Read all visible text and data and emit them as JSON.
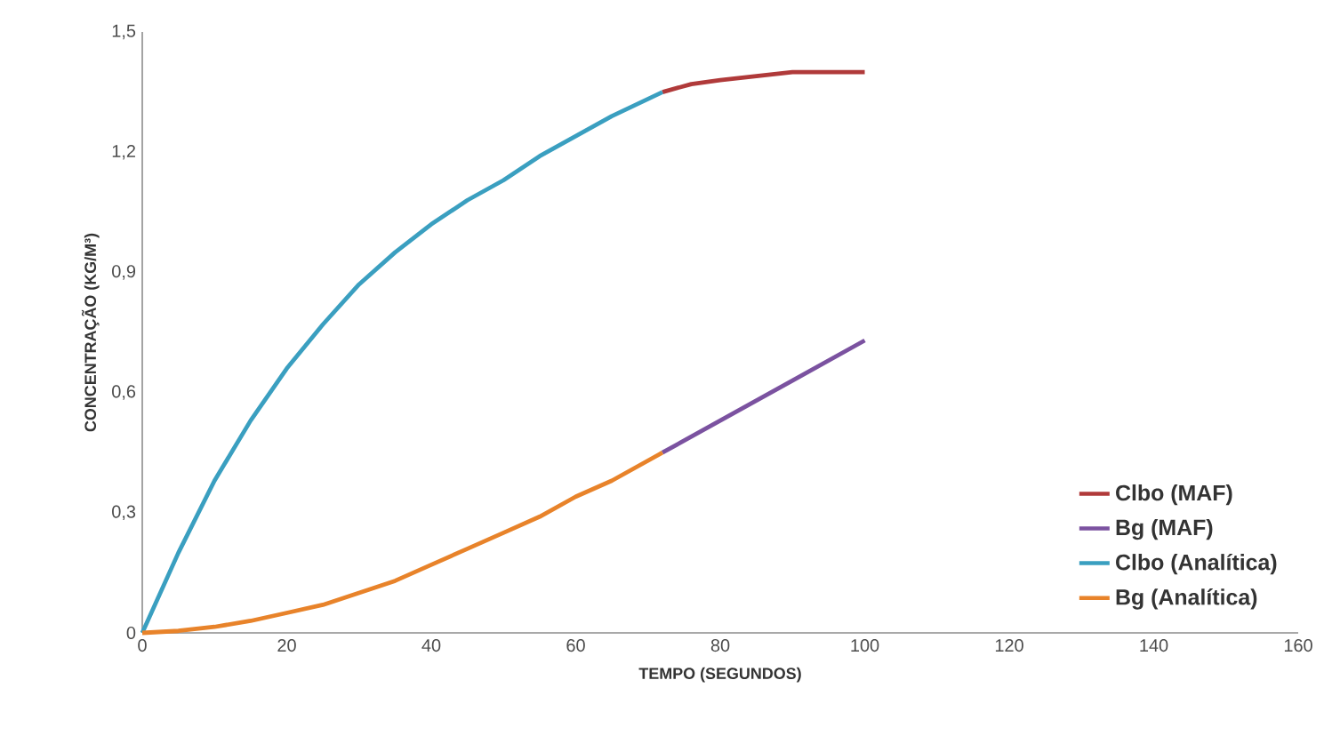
{
  "chart_data": {
    "type": "line",
    "xlabel": "TEMPO (SEGUNDOS)",
    "ylabel": "CONCENTRAÇÃO (KG/M³)",
    "xlim": [
      0,
      160
    ],
    "ylim": [
      0,
      1.5
    ],
    "xticks": [
      0,
      20,
      40,
      60,
      80,
      100,
      120,
      140,
      160
    ],
    "yticks": [
      0,
      {
        "value": 0.3,
        "label": "0,3"
      },
      {
        "value": 0.6,
        "label": "0,6"
      },
      {
        "value": 0.9,
        "label": "0,9"
      },
      {
        "value": 1.2,
        "label": "1,2"
      },
      {
        "value": 1.5,
        "label": "1,5"
      }
    ],
    "grid": false,
    "legend": "bottom right",
    "marker": "none",
    "line_style": "solid",
    "series": [
      {
        "name": "Clbo (MAF)",
        "color": "#b03a3a",
        "x": [
          72,
          76,
          80,
          85,
          90,
          95,
          100
        ],
        "values": [
          1.35,
          1.37,
          1.38,
          1.39,
          1.4,
          1.4,
          1.4
        ]
      },
      {
        "name": "Bg (MAF)",
        "color": "#7b52a0",
        "x": [
          72,
          80,
          90,
          100
        ],
        "values": [
          0.45,
          0.53,
          0.63,
          0.73
        ]
      },
      {
        "name": "Clbo (Analítica)",
        "color": "#3a9fc0",
        "x": [
          0,
          5,
          10,
          15,
          20,
          25,
          30,
          35,
          40,
          45,
          50,
          55,
          60,
          65,
          72
        ],
        "values": [
          0,
          0.2,
          0.38,
          0.53,
          0.66,
          0.77,
          0.87,
          0.95,
          1.02,
          1.08,
          1.13,
          1.19,
          1.24,
          1.29,
          1.35
        ]
      },
      {
        "name": "Bg (Analítica)",
        "color": "#e8832a",
        "x": [
          0,
          5,
          10,
          15,
          20,
          25,
          30,
          35,
          40,
          45,
          50,
          55,
          60,
          65,
          72
        ],
        "values": [
          0,
          0.005,
          0.015,
          0.03,
          0.05,
          0.07,
          0.1,
          0.13,
          0.17,
          0.21,
          0.25,
          0.29,
          0.34,
          0.38,
          0.45
        ]
      }
    ]
  }
}
